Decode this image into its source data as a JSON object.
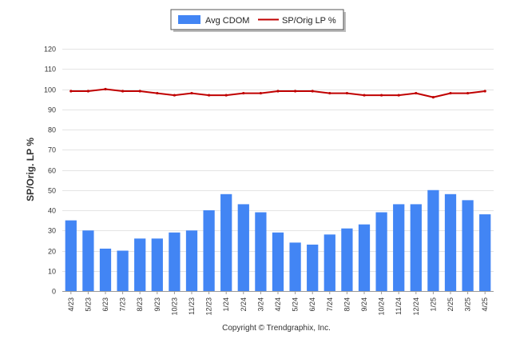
{
  "chart_data": {
    "type": "bar",
    "categories": [
      "4/23",
      "5/23",
      "6/23",
      "7/23",
      "8/23",
      "9/23",
      "10/23",
      "11/23",
      "12/23",
      "1/24",
      "2/24",
      "3/24",
      "4/24",
      "5/24",
      "6/24",
      "7/24",
      "8/24",
      "9/24",
      "10/24",
      "11/24",
      "12/24",
      "1/25",
      "2/25",
      "3/25",
      "4/25"
    ],
    "series": [
      {
        "name": "Avg CDOM",
        "type": "bar",
        "color": "#4285f4",
        "values": [
          35,
          30,
          21,
          20,
          26,
          26,
          29,
          30,
          40,
          48,
          43,
          39,
          29,
          24,
          23,
          28,
          31,
          33,
          39,
          43,
          43,
          50,
          48,
          45,
          38
        ]
      },
      {
        "name": "SP/Orig LP %",
        "type": "line",
        "color": "#c00000",
        "values": [
          99,
          99,
          100,
          99,
          99,
          98,
          97,
          98,
          97,
          97,
          98,
          98,
          99,
          99,
          99,
          98,
          98,
          97,
          97,
          97,
          98,
          96,
          98,
          98,
          99
        ]
      }
    ],
    "ylabel": "SP/Orig. LP %",
    "ylim": [
      0,
      120
    ],
    "yticks": [
      0,
      10,
      20,
      30,
      40,
      50,
      60,
      70,
      80,
      90,
      100,
      110,
      120
    ],
    "grid": true,
    "legend_position": "top-center",
    "credit": "Copyright © Trendgraphix, Inc."
  }
}
